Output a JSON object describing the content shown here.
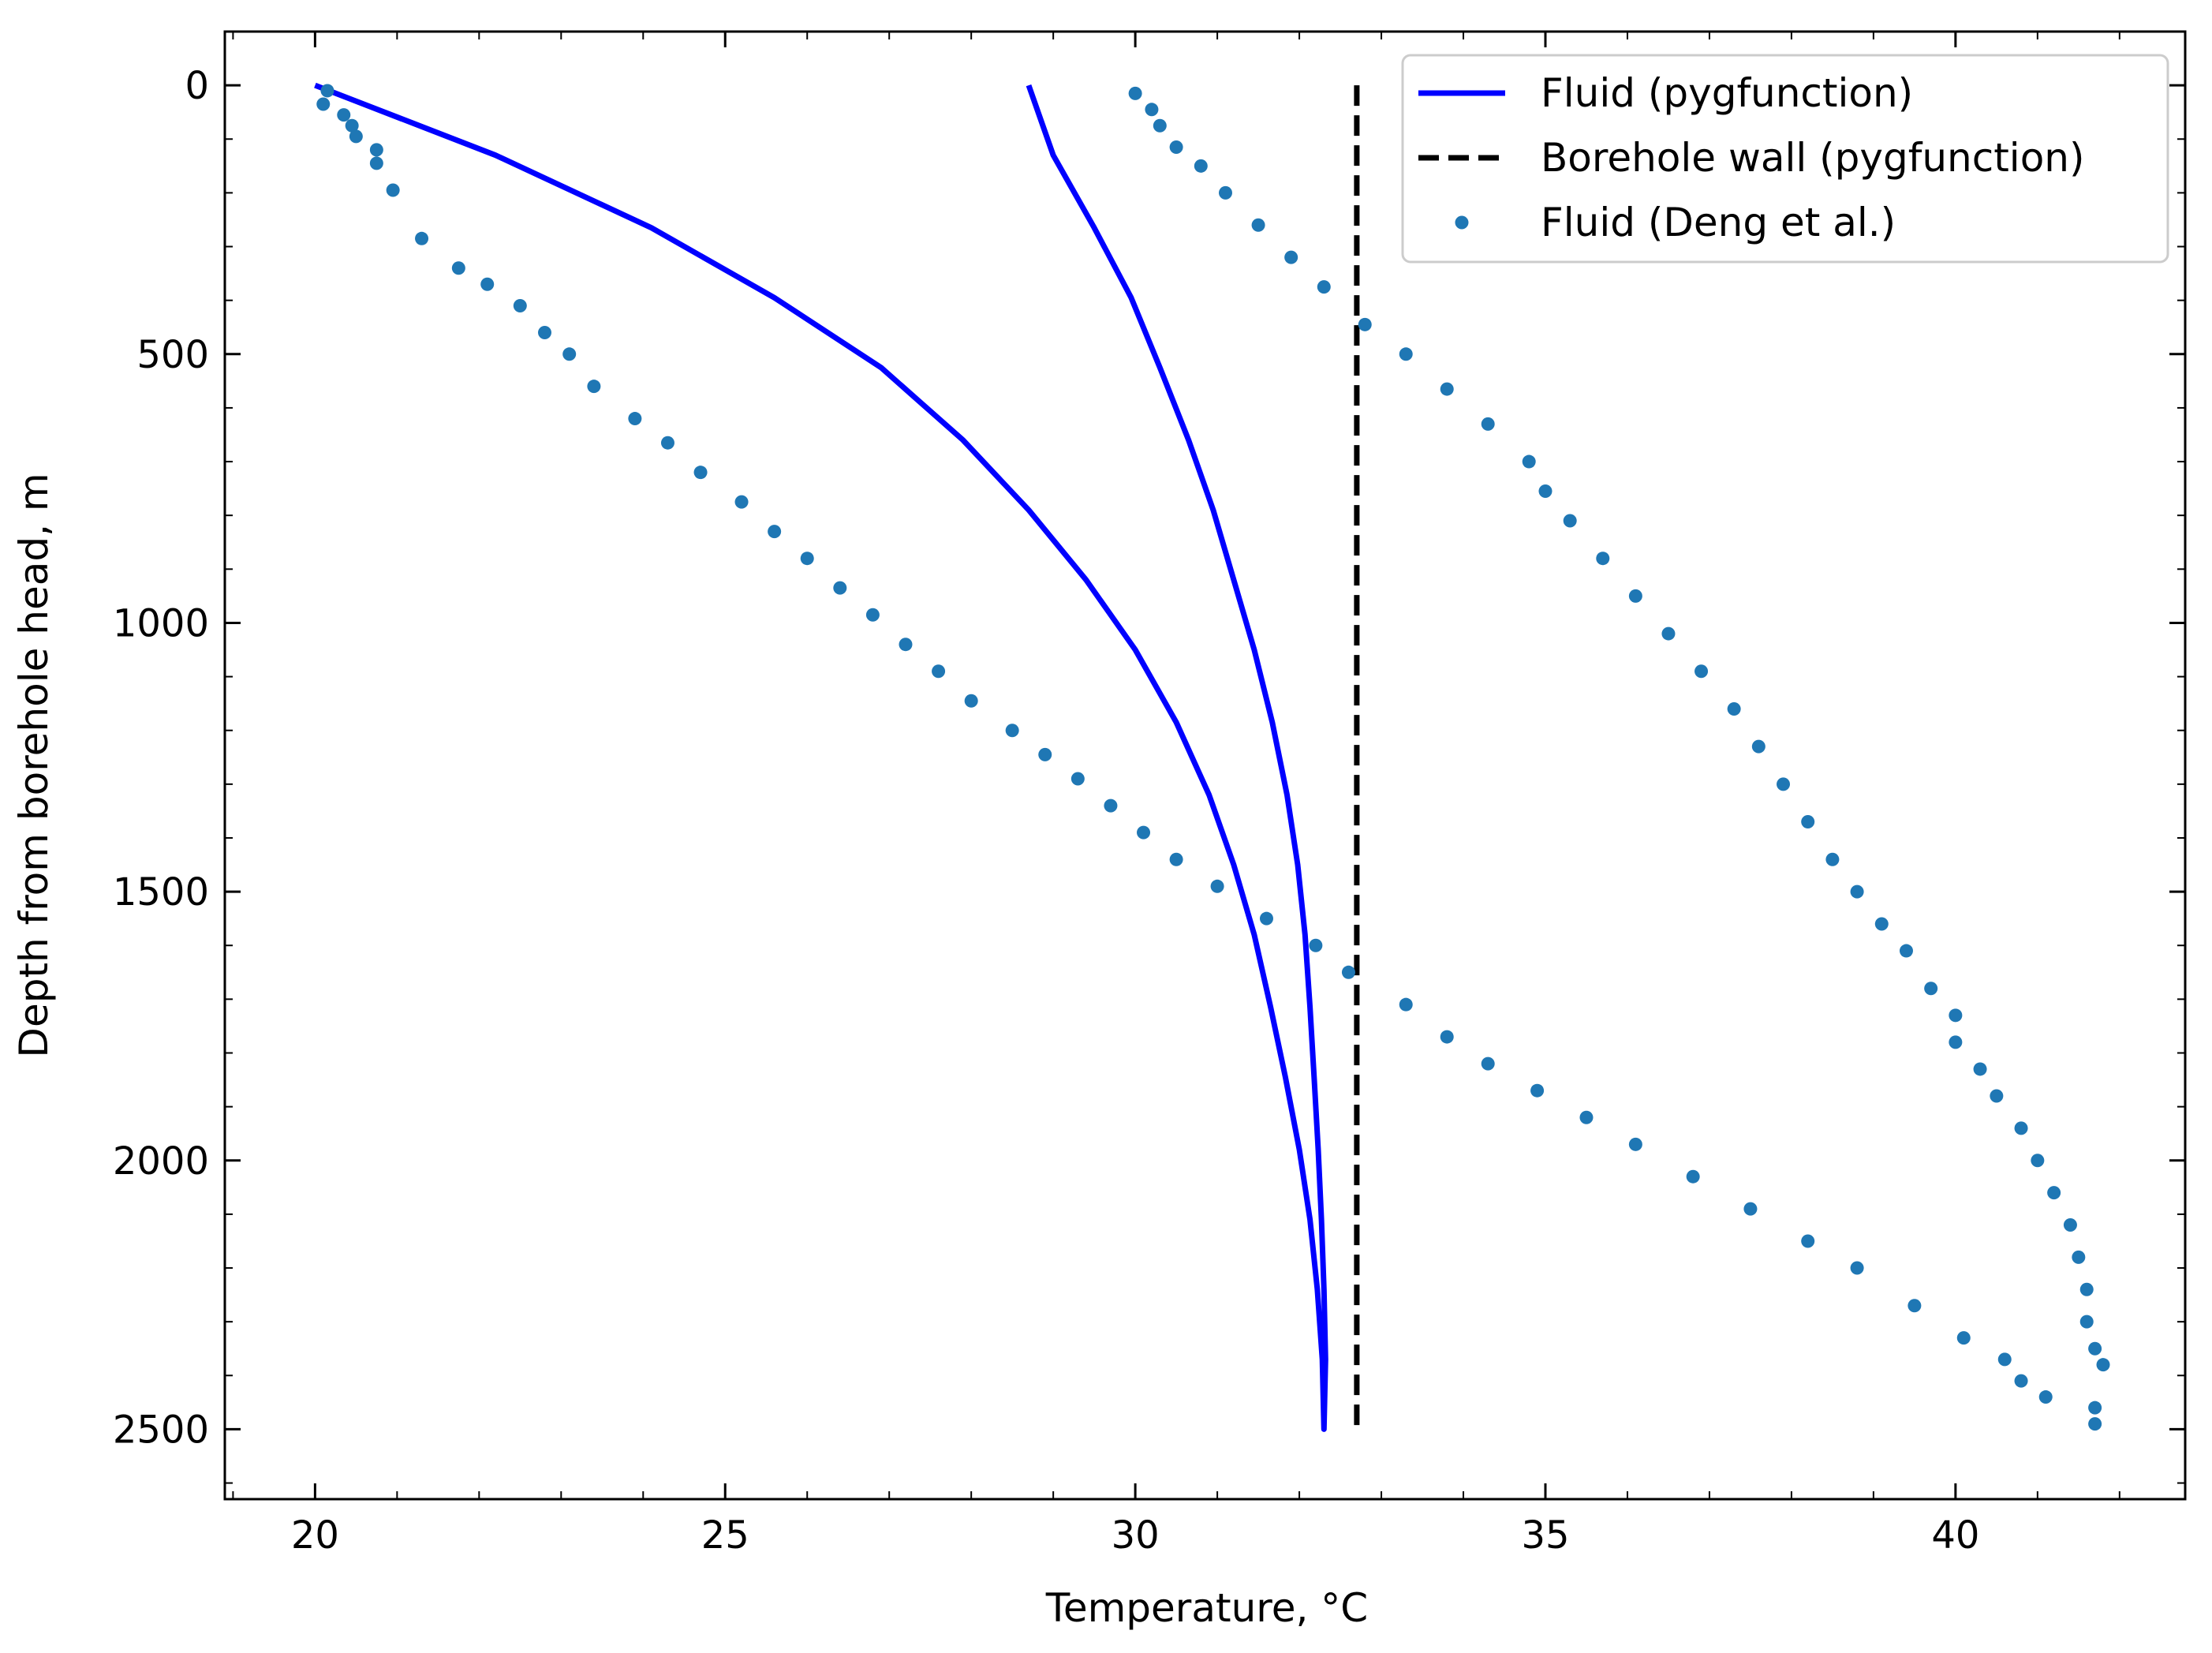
{
  "chart_data": {
    "type": "line",
    "title": "",
    "xlabel": "Temperature, °C",
    "ylabel": "Depth from borehole head, m",
    "xlim": [
      18.9,
      42.8
    ],
    "ylim": [
      2630,
      -100
    ],
    "y_inverted": true,
    "grid": false,
    "legend_position": "top-right",
    "xticks": [
      20,
      25,
      30,
      35,
      40
    ],
    "yticks": [
      0,
      500,
      1000,
      1500,
      2000,
      2500
    ],
    "xtick_labels": [
      "20",
      "25",
      "30",
      "35",
      "40"
    ],
    "ytick_labels": [
      "0",
      "500",
      "1000",
      "1500",
      "2000",
      "2500"
    ],
    "colors": {
      "fluid_pyg": "#0000ff",
      "wall_pyg": "#000000",
      "fluid_deng": "#1f77b4"
    },
    "legend": [
      {
        "key": "fluid_pyg",
        "label": "Fluid (pygfunction)"
      },
      {
        "key": "wall_pyg",
        "label": "Borehole wall (pygfunction)"
      },
      {
        "key": "fluid_deng",
        "label": "Fluid (Deng et al.)"
      }
    ],
    "series": [
      {
        "name": "Fluid (pygfunction)",
        "style": "solid",
        "color_key": "fluid_pyg",
        "points": [
          [
            20.0,
            0
          ],
          [
            22.2,
            130
          ],
          [
            24.1,
            265
          ],
          [
            25.6,
            395
          ],
          [
            26.9,
            525
          ],
          [
            27.9,
            660
          ],
          [
            28.7,
            790
          ],
          [
            29.4,
            920
          ],
          [
            30.0,
            1050
          ],
          [
            30.5,
            1185
          ],
          [
            30.9,
            1320
          ],
          [
            31.2,
            1450
          ],
          [
            31.45,
            1580
          ],
          [
            31.65,
            1715
          ],
          [
            31.83,
            1845
          ],
          [
            32.0,
            1980
          ],
          [
            32.13,
            2110
          ],
          [
            32.22,
            2240
          ],
          [
            32.28,
            2370
          ],
          [
            32.3,
            2500
          ],
          [
            32.32,
            2370
          ],
          [
            32.3,
            2240
          ],
          [
            32.27,
            2110
          ],
          [
            32.23,
            1980
          ],
          [
            32.18,
            1845
          ],
          [
            32.13,
            1715
          ],
          [
            32.07,
            1580
          ],
          [
            31.98,
            1450
          ],
          [
            31.85,
            1320
          ],
          [
            31.67,
            1185
          ],
          [
            31.45,
            1050
          ],
          [
            31.2,
            920
          ],
          [
            30.95,
            790
          ],
          [
            30.65,
            660
          ],
          [
            30.3,
            525
          ],
          [
            29.95,
            395
          ],
          [
            29.5,
            265
          ],
          [
            29.0,
            130
          ],
          [
            28.7,
            0
          ]
        ]
      },
      {
        "name": "Borehole wall (pygfunction)",
        "style": "dashed",
        "color_key": "wall_pyg",
        "points": [
          [
            32.7,
            0
          ],
          [
            32.7,
            2500
          ]
        ]
      },
      {
        "name": "Fluid (Deng et al.)",
        "style": "markers",
        "color_key": "fluid_deng",
        "points": [
          [
            20.15,
            10
          ],
          [
            20.1,
            35
          ],
          [
            20.35,
            55
          ],
          [
            20.45,
            75
          ],
          [
            20.5,
            95
          ],
          [
            20.75,
            120
          ],
          [
            20.75,
            145
          ],
          [
            20.95,
            195
          ],
          [
            21.3,
            285
          ],
          [
            21.75,
            340
          ],
          [
            22.1,
            370
          ],
          [
            22.5,
            410
          ],
          [
            22.8,
            460
          ],
          [
            23.1,
            500
          ],
          [
            23.4,
            560
          ],
          [
            23.9,
            620
          ],
          [
            24.3,
            665
          ],
          [
            24.7,
            720
          ],
          [
            25.2,
            775
          ],
          [
            25.6,
            830
          ],
          [
            26.0,
            880
          ],
          [
            26.4,
            935
          ],
          [
            26.8,
            985
          ],
          [
            27.2,
            1040
          ],
          [
            27.6,
            1090
          ],
          [
            28.0,
            1145
          ],
          [
            28.5,
            1200
          ],
          [
            28.9,
            1245
          ],
          [
            29.3,
            1290
          ],
          [
            29.7,
            1340
          ],
          [
            30.1,
            1390
          ],
          [
            30.5,
            1440
          ],
          [
            31.0,
            1490
          ],
          [
            31.6,
            1550
          ],
          [
            32.2,
            1600
          ],
          [
            32.6,
            1650
          ],
          [
            33.3,
            1710
          ],
          [
            33.8,
            1770
          ],
          [
            34.3,
            1820
          ],
          [
            34.9,
            1870
          ],
          [
            35.5,
            1920
          ],
          [
            36.1,
            1970
          ],
          [
            36.8,
            2030
          ],
          [
            37.5,
            2090
          ],
          [
            38.2,
            2150
          ],
          [
            38.8,
            2200
          ],
          [
            39.5,
            2270
          ],
          [
            40.1,
            2330
          ],
          [
            40.6,
            2370
          ],
          [
            40.8,
            2410
          ],
          [
            41.1,
            2440
          ],
          [
            30.0,
            15
          ],
          [
            30.2,
            45
          ],
          [
            30.3,
            75
          ],
          [
            30.5,
            115
          ],
          [
            30.8,
            150
          ],
          [
            31.1,
            200
          ],
          [
            31.5,
            260
          ],
          [
            31.9,
            320
          ],
          [
            32.3,
            375
          ],
          [
            32.8,
            445
          ],
          [
            33.3,
            500
          ],
          [
            33.8,
            565
          ],
          [
            34.3,
            630
          ],
          [
            34.8,
            700
          ],
          [
            35.0,
            755
          ],
          [
            35.3,
            810
          ],
          [
            35.7,
            880
          ],
          [
            36.1,
            950
          ],
          [
            36.5,
            1020
          ],
          [
            36.9,
            1090
          ],
          [
            37.3,
            1160
          ],
          [
            37.6,
            1230
          ],
          [
            37.9,
            1300
          ],
          [
            38.2,
            1370
          ],
          [
            38.5,
            1440
          ],
          [
            38.8,
            1500
          ],
          [
            39.1,
            1560
          ],
          [
            39.4,
            1610
          ],
          [
            39.7,
            1680
          ],
          [
            40.0,
            1730
          ],
          [
            40.0,
            1780
          ],
          [
            40.3,
            1830
          ],
          [
            40.5,
            1880
          ],
          [
            40.8,
            1940
          ],
          [
            41.0,
            2000
          ],
          [
            41.2,
            2060
          ],
          [
            41.4,
            2120
          ],
          [
            41.5,
            2180
          ],
          [
            41.6,
            2240
          ],
          [
            41.6,
            2300
          ],
          [
            41.7,
            2350
          ],
          [
            41.8,
            2380
          ],
          [
            41.7,
            2460
          ],
          [
            41.7,
            2490
          ]
        ]
      }
    ]
  }
}
